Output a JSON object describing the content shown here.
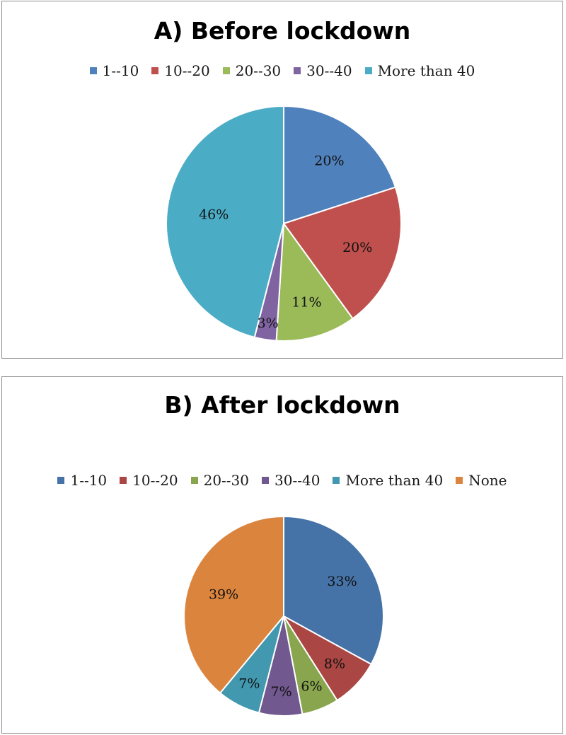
{
  "chart_data": [
    {
      "type": "pie",
      "title": "A) Before lockdown",
      "legend_position": "top",
      "slices": [
        {
          "label": "1--10",
          "value": 20,
          "display": "20%",
          "color": "#4f81bd"
        },
        {
          "label": "10--20",
          "value": 20,
          "display": "20%",
          "color": "#c0504d"
        },
        {
          "label": "20--30",
          "value": 11,
          "display": "11%",
          "color": "#9bbb59"
        },
        {
          "label": "30--40",
          "value": 3,
          "display": "3%",
          "color": "#8064a2"
        },
        {
          "label": "More than 40",
          "value": 46,
          "display": "46%",
          "color": "#4bacc6"
        }
      ]
    },
    {
      "type": "pie",
      "title": "B) After lockdown",
      "legend_position": "top",
      "slices": [
        {
          "label": "1--10",
          "value": 33,
          "display": "33%",
          "color": "#4572a7"
        },
        {
          "label": "10--20",
          "value": 8,
          "display": "8%",
          "color": "#aa4643"
        },
        {
          "label": "20--30",
          "value": 6,
          "display": "6%",
          "color": "#89a54e"
        },
        {
          "label": "30--40",
          "value": 7,
          "display": "7%",
          "color": "#71588f"
        },
        {
          "label": "More than 40",
          "value": 7,
          "display": "7%",
          "color": "#4198af"
        },
        {
          "label": "None",
          "value": 39,
          "display": "39%",
          "color": "#db843d"
        }
      ]
    }
  ]
}
